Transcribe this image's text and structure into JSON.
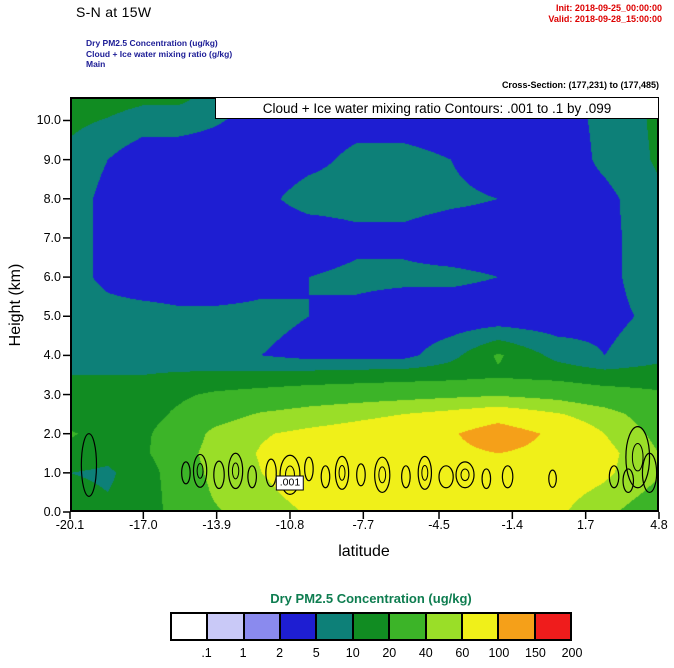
{
  "header": {
    "title": "S-N at 15W",
    "init": "Init: 2018-09-25_00:00:00",
    "valid": "Valid: 2018-09-28_15:00:00",
    "field1": "Dry PM2.5 Concentration   (ug/kg)",
    "field2": "Cloud + Ice water mixing ratio   (g/kg)",
    "field3": "Main",
    "cross_section": "Cross-Section: (177,231) to (177,485)"
  },
  "plot": {
    "overlay_title": "Cloud + Ice water mixing ratio Contours: .001 to .1 by .099",
    "contour_label": ".001",
    "xlabel": "latitude",
    "ylabel": "Height (km)"
  },
  "colorbar": {
    "title": "Dry PM2.5 Concentration  (ug/kg)",
    "title_color": "#0e7d50",
    "labels": [
      ".1",
      "1",
      "2",
      "5",
      "10",
      "20",
      "40",
      "60",
      "100",
      "150",
      "200"
    ],
    "colors": [
      "#ffffff",
      "#c9c9f7",
      "#8a8aee",
      "#1e1ed2",
      "#0d8078",
      "#118c22",
      "#3cb428",
      "#9ade28",
      "#f0f019",
      "#f5a019",
      "#ef1c1c"
    ]
  },
  "chart_data": {
    "type": "heatmap",
    "title": "S-N at 15W",
    "subtitle": "Dry PM2.5 Concentration cross-section with Cloud + Ice water mixing ratio contours",
    "xlabel": "latitude",
    "ylabel": "Height (km)",
    "units": "ug/kg",
    "xlim": [
      -20.1,
      4.8
    ],
    "ylim": [
      0,
      10.6
    ],
    "x_ticks": [
      -20.1,
      -17.0,
      -13.9,
      -10.8,
      -7.7,
      -4.5,
      -1.4,
      1.7,
      4.8
    ],
    "x_tick_labels": [
      "-20.1",
      "-17.0",
      "-13.9",
      "-10.8",
      "-7.7",
      "-4.5",
      "-1.4",
      "1.7",
      "4.8"
    ],
    "y_ticks": [
      0,
      1,
      2,
      3,
      4,
      5,
      6,
      7,
      8,
      9,
      10
    ],
    "y_tick_labels": [
      "0.0",
      "1.0",
      "2.0",
      "3.0",
      "4.0",
      "5.0",
      "6.0",
      "7.0",
      "8.0",
      "9.0",
      "10.0"
    ],
    "levels": [
      0.1,
      1,
      2,
      5,
      10,
      20,
      40,
      60,
      100,
      150,
      200
    ],
    "palette": [
      "#ffffff",
      "#c9c9f7",
      "#8a8aee",
      "#1e1ed2",
      "#0d8078",
      "#118c22",
      "#3cb428",
      "#9ade28",
      "#f0f019",
      "#f5a019",
      "#ef1c1c",
      "#b00000"
    ],
    "legend_position": "bottom",
    "grid_on": false,
    "grid": {
      "lats": [
        -20.1,
        -18.5,
        -17,
        -15.5,
        -14,
        -12,
        -10,
        -8,
        -6,
        -4,
        -2,
        0.5,
        2.5,
        4.8
      ],
      "heights": [
        0,
        0.5,
        1,
        1.5,
        2,
        2.5,
        3,
        3.5,
        4,
        5,
        6,
        7,
        8,
        9,
        10.6
      ],
      "values": [
        [
          14,
          12,
          15,
          25,
          38,
          50,
          62,
          65,
          68,
          70,
          70,
          65,
          45,
          28
        ],
        [
          12,
          10,
          14,
          28,
          42,
          55,
          70,
          72,
          78,
          80,
          80,
          70,
          55,
          35
        ],
        [
          10,
          9,
          14,
          30,
          45,
          60,
          75,
          80,
          85,
          85,
          90,
          80,
          65,
          42
        ],
        [
          15,
          12,
          18,
          32,
          48,
          62,
          72,
          78,
          85,
          90,
          100,
          88,
          70,
          40
        ],
        [
          22,
          14,
          18,
          28,
          45,
          58,
          66,
          72,
          80,
          95,
          130,
          90,
          60,
          35
        ],
        [
          12,
          13,
          16,
          22,
          32,
          42,
          48,
          54,
          60,
          68,
          80,
          62,
          48,
          30
        ],
        [
          12,
          14,
          16,
          18,
          22,
          26,
          30,
          32,
          34,
          36,
          38,
          34,
          28,
          22
        ],
        [
          10,
          10,
          10,
          11,
          12,
          12,
          13,
          14,
          15,
          16,
          18,
          16,
          13,
          14
        ],
        [
          9,
          8,
          7,
          6,
          5,
          5,
          4,
          4,
          4,
          8,
          22,
          8,
          5,
          8
        ],
        [
          8,
          7,
          7,
          6,
          6,
          6,
          5,
          4,
          3,
          3,
          3,
          3,
          4,
          6
        ],
        [
          7,
          4,
          3,
          3,
          3,
          4,
          5,
          6,
          6,
          6,
          5,
          4,
          4,
          8
        ],
        [
          7,
          4,
          3,
          3,
          3,
          3,
          3,
          4,
          4,
          3,
          3,
          3,
          4,
          8
        ],
        [
          7,
          4,
          3,
          3,
          3,
          4,
          7,
          7,
          7,
          6,
          5,
          3,
          4,
          9
        ],
        [
          8,
          5,
          3,
          3,
          3,
          3,
          4,
          6,
          6,
          5,
          3,
          3,
          6,
          11
        ],
        [
          15,
          14,
          12,
          12,
          8,
          4,
          3,
          3,
          3,
          3,
          3,
          4,
          6,
          12
        ]
      ]
    },
    "cloud_contours": {
      "levels_text": ".001 to .1 by .099",
      "label": {
        "lat": -10.8,
        "h": 0.75,
        "text": ".001"
      },
      "blobs": [
        [
          -19.3,
          1.2,
          0.32,
          0.8,
          0
        ],
        [
          -15.2,
          1.0,
          0.18,
          0.28,
          0
        ],
        [
          -14.6,
          1.05,
          0.28,
          0.42,
          1
        ],
        [
          -13.8,
          0.95,
          0.22,
          0.35,
          0
        ],
        [
          -13.1,
          1.05,
          0.3,
          0.45,
          1
        ],
        [
          -12.4,
          0.9,
          0.18,
          0.28,
          0
        ],
        [
          -11.6,
          1.0,
          0.22,
          0.35,
          0
        ],
        [
          -10.8,
          0.95,
          0.42,
          0.5,
          1
        ],
        [
          -10.0,
          1.1,
          0.18,
          0.3,
          0
        ],
        [
          -9.3,
          0.9,
          0.18,
          0.28,
          0
        ],
        [
          -8.6,
          1.0,
          0.28,
          0.42,
          1
        ],
        [
          -7.8,
          0.95,
          0.18,
          0.28,
          0
        ],
        [
          -6.9,
          0.95,
          0.32,
          0.45,
          1
        ],
        [
          -5.9,
          0.9,
          0.18,
          0.28,
          0
        ],
        [
          -5.1,
          1.0,
          0.28,
          0.42,
          1
        ],
        [
          -4.2,
          0.9,
          0.3,
          0.28,
          0
        ],
        [
          -3.4,
          0.95,
          0.38,
          0.33,
          1
        ],
        [
          -2.5,
          0.85,
          0.18,
          0.25,
          0
        ],
        [
          -1.6,
          0.9,
          0.22,
          0.28,
          0
        ],
        [
          0.3,
          0.85,
          0.16,
          0.22,
          0
        ],
        [
          2.9,
          0.9,
          0.2,
          0.28,
          0
        ],
        [
          3.9,
          1.4,
          0.5,
          0.78,
          1
        ],
        [
          4.4,
          1.0,
          0.3,
          0.5,
          0
        ],
        [
          3.5,
          0.8,
          0.22,
          0.3,
          0
        ]
      ]
    }
  }
}
